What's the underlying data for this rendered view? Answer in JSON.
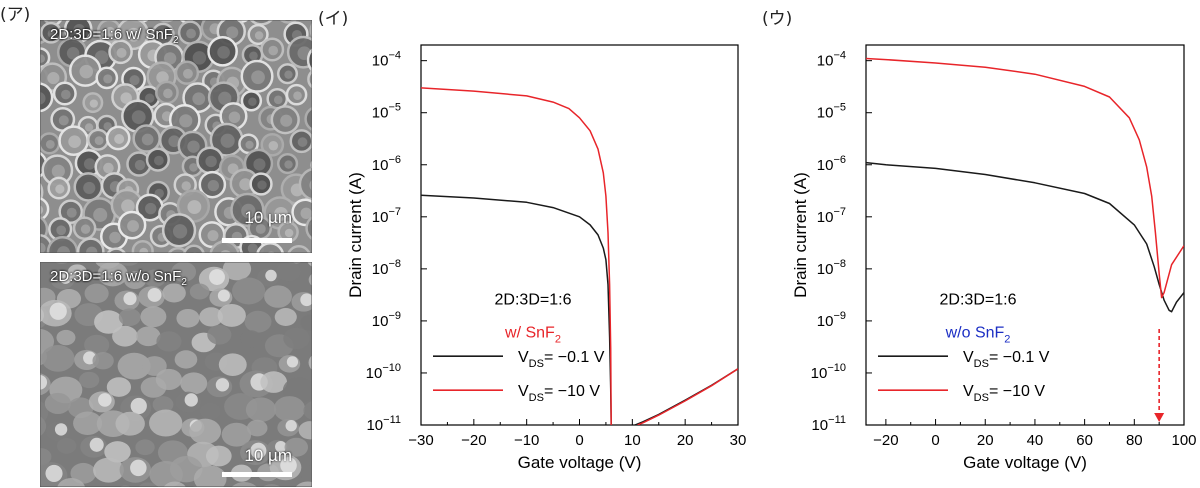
{
  "panel_a": {
    "label": "(ア)",
    "images": [
      {
        "caption_pre": "2D:3D=1:6 w/ SnF",
        "caption_sub": "2",
        "scale_text": "10 µm",
        "scale_value_um": 10
      },
      {
        "caption_pre": "2D:3D=1:6 w/o SnF",
        "caption_sub": "2",
        "scale_text": "10 µm",
        "scale_value_um": 10
      }
    ]
  },
  "chart_data": [
    {
      "type": "line",
      "panel_label": "(イ)",
      "xlabel": "Gate voltage (V)",
      "ylabel": "Drain current (A)",
      "xlim": [
        -30,
        30
      ],
      "ylim": [
        1e-11,
        0.0002
      ],
      "yscale": "log",
      "xticks": [
        -30,
        -20,
        -10,
        0,
        10,
        20,
        30
      ],
      "yticks": [
        1e-11,
        1e-10,
        1e-09,
        1e-08,
        1e-07,
        1e-06,
        1e-05,
        0.0001
      ],
      "ytick_labels": [
        {
          "base": "10",
          "exp": "−11"
        },
        {
          "base": "10",
          "exp": "−10"
        },
        {
          "base": "10",
          "exp": "−9"
        },
        {
          "base": "10",
          "exp": "−8"
        },
        {
          "base": "10",
          "exp": "−7"
        },
        {
          "base": "10",
          "exp": "−6"
        },
        {
          "base": "10",
          "exp": "−5"
        },
        {
          "base": "10",
          "exp": "−4"
        }
      ],
      "annotation": {
        "line1": "2D:3D=1:6",
        "line2_pre": "w/ SnF",
        "line2_sub": "2",
        "line2_color": "#e8252a"
      },
      "series": [
        {
          "name_pre": "V",
          "name_sub": "DS",
          "name_post": "= −0.1 V",
          "color": "#1a1a1a",
          "segments": [
            [
              [
                -30,
                2.6e-07
              ],
              [
                -20,
                2.3e-07
              ],
              [
                -10,
                1.9e-07
              ],
              [
                -5,
                1.5e-07
              ],
              [
                0,
                1e-07
              ],
              [
                2,
                7e-08
              ],
              [
                3.5,
                4.5e-08
              ],
              [
                4.5,
                2.5e-08
              ],
              [
                5,
                1.5e-08
              ],
              [
                5.4,
                5e-09
              ],
              [
                5.7,
                5e-10
              ],
              [
                5.9,
                5e-11
              ],
              [
                6.0,
                1e-11
              ]
            ],
            [
              [
                10.5,
                1e-11
              ],
              [
                12,
                1.15e-11
              ],
              [
                15,
                1.6e-11
              ],
              [
                20,
                3e-11
              ],
              [
                25,
                5.8e-11
              ],
              [
                30,
                1.2e-10
              ]
            ]
          ]
        },
        {
          "name_pre": "V",
          "name_sub": "DS",
          "name_post": "= −10 V",
          "color": "#e8252a",
          "segments": [
            [
              [
                -30,
                3e-05
              ],
              [
                -20,
                2.6e-05
              ],
              [
                -10,
                2.1e-05
              ],
              [
                -5,
                1.6e-05
              ],
              [
                -2,
                1.2e-05
              ],
              [
                0,
                8e-06
              ],
              [
                2,
                4.5e-06
              ],
              [
                3.5,
                2e-06
              ],
              [
                4.5,
                7e-07
              ],
              [
                5,
                2.5e-07
              ],
              [
                5.4,
                5e-08
              ],
              [
                5.7,
                5e-09
              ],
              [
                5.9,
                3e-10
              ],
              [
                6.0,
                1e-11
              ]
            ],
            [
              [
                11,
                1e-11
              ],
              [
                12,
                1.1e-11
              ],
              [
                15,
                1.55e-11
              ],
              [
                20,
                2.9e-11
              ],
              [
                25,
                5.7e-11
              ],
              [
                30,
                1.2e-10
              ]
            ]
          ]
        }
      ],
      "legend_position": "bottom-left"
    },
    {
      "type": "line",
      "panel_label": "(ウ)",
      "xlabel": "Gate voltage (V)",
      "ylabel": "Drain current (A)",
      "xlim": [
        -28,
        100
      ],
      "ylim": [
        1e-11,
        0.0002
      ],
      "yscale": "log",
      "xticks": [
        -20,
        0,
        20,
        40,
        60,
        80,
        100
      ],
      "yticks": [
        1e-11,
        1e-10,
        1e-09,
        1e-08,
        1e-07,
        1e-06,
        1e-05,
        0.0001
      ],
      "ytick_labels": [
        {
          "base": "10",
          "exp": "−11"
        },
        {
          "base": "10",
          "exp": "−10"
        },
        {
          "base": "10",
          "exp": "−9"
        },
        {
          "base": "10",
          "exp": "−8"
        },
        {
          "base": "10",
          "exp": "−7"
        },
        {
          "base": "10",
          "exp": "−6"
        },
        {
          "base": "10",
          "exp": "−5"
        },
        {
          "base": "10",
          "exp": "−4"
        }
      ],
      "annotation": {
        "line1": "2D:3D=1:6",
        "line2_pre": "w/o SnF",
        "line2_sub": "2",
        "line2_color": "#1c2fc4"
      },
      "arrow": {
        "x": 90,
        "y_from": 7e-10,
        "y_to": 1e-11,
        "color": "#e8252a"
      },
      "series": [
        {
          "name_pre": "V",
          "name_sub": "DS",
          "name_post": "= −0.1 V",
          "color": "#1a1a1a",
          "segments": [
            [
              [
                -28,
                1.1e-06
              ],
              [
                -20,
                1e-06
              ],
              [
                0,
                8.5e-07
              ],
              [
                20,
                6.5e-07
              ],
              [
                40,
                4.5e-07
              ],
              [
                60,
                2.8e-07
              ],
              [
                70,
                1.8e-07
              ],
              [
                80,
                7e-08
              ],
              [
                85,
                3e-08
              ],
              [
                88,
                1.1e-08
              ],
              [
                90,
                5e-09
              ],
              [
                92,
                2.5e-09
              ],
              [
                94,
                1.6e-09
              ],
              [
                95,
                1.5e-09
              ],
              [
                97,
                2.3e-09
              ],
              [
                100,
                3.5e-09
              ]
            ]
          ]
        },
        {
          "name_pre": "V",
          "name_sub": "DS",
          "name_post": "= −10 V",
          "color": "#e8252a",
          "segments": [
            [
              [
                -28,
                0.00011
              ],
              [
                -20,
                0.000105
              ],
              [
                0,
                9e-05
              ],
              [
                20,
                7.5e-05
              ],
              [
                40,
                5.5e-05
              ],
              [
                60,
                3.2e-05
              ],
              [
                70,
                2e-05
              ],
              [
                78,
                8e-06
              ],
              [
                82,
                3e-06
              ],
              [
                85,
                9e-07
              ],
              [
                87,
                2.5e-07
              ],
              [
                88.5,
                5e-08
              ],
              [
                90,
                8e-09
              ],
              [
                91,
                2.8e-09
              ],
              [
                92,
                3.5e-09
              ],
              [
                95,
                1.2e-08
              ],
              [
                100,
                2.8e-08
              ]
            ]
          ]
        }
      ],
      "legend_position": "bottom-left"
    }
  ]
}
